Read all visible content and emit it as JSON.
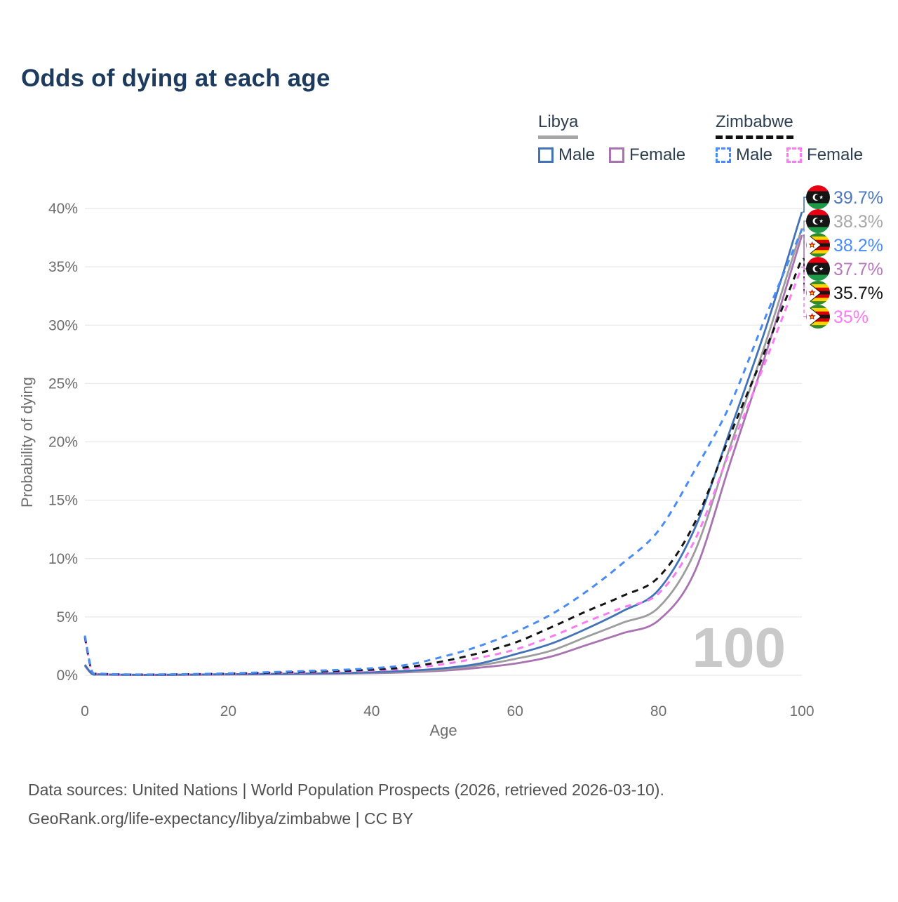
{
  "title": "Odds of dying at each age",
  "legend": {
    "groups": [
      {
        "name": "Libya",
        "line_style": "solid",
        "underline_color": "#a6a6a6",
        "items": [
          {
            "label": "Male",
            "color": "#4273b7",
            "dashed": false
          },
          {
            "label": "Female",
            "color": "#a873b0",
            "dashed": false
          }
        ]
      },
      {
        "name": "Zimbabwe",
        "line_style": "dashed",
        "underline_color": "#111111",
        "items": [
          {
            "label": "Male",
            "color": "#4a8cf7",
            "dashed": true
          },
          {
            "label": "Female",
            "color": "#fb7bf5",
            "dashed": true
          }
        ]
      }
    ]
  },
  "chart_data": {
    "type": "line",
    "title": "Odds of dying at each age",
    "xlabel": "Age",
    "ylabel": "Probability of dying",
    "xlim": [
      0,
      100
    ],
    "ylim": [
      0,
      40
    ],
    "x_ticks": [
      0,
      20,
      40,
      60,
      80,
      100
    ],
    "x_tick_labels": [
      "0",
      "20",
      "40",
      "60",
      "80",
      "100"
    ],
    "y_ticks": [
      0,
      5,
      10,
      15,
      20,
      25,
      30,
      35,
      40
    ],
    "y_tick_labels": [
      "0%",
      "5%",
      "10%",
      "15%",
      "20%",
      "25%",
      "30%",
      "35%",
      "40%"
    ],
    "grid": "horizontal",
    "legend_position": "top-right",
    "hover_age": "100",
    "x": [
      0,
      1,
      2,
      5,
      10,
      15,
      20,
      25,
      30,
      35,
      40,
      45,
      50,
      55,
      60,
      65,
      70,
      75,
      80,
      85,
      90,
      95,
      100
    ],
    "series": [
      {
        "name": "Libya Male",
        "country": "Libya",
        "sex": "Male",
        "color": "#4273b7",
        "label_color": "#4b77bc",
        "dashed": false,
        "z": 3,
        "end_value": 39.7,
        "end_label": "39.7%",
        "values": [
          0.9,
          0.12,
          0.08,
          0.05,
          0.04,
          0.06,
          0.09,
          0.11,
          0.14,
          0.18,
          0.26,
          0.38,
          0.6,
          1.0,
          1.8,
          2.7,
          4.0,
          5.5,
          7.3,
          12.5,
          21.0,
          29.8,
          39.7
        ]
      },
      {
        "name": "Libya",
        "country": "Libya",
        "sex": "Both",
        "color": "#9d9d9d",
        "label_color": "#a8a8a8",
        "dashed": false,
        "z": 2,
        "end_value": 38.3,
        "end_label": "38.3%",
        "values": [
          0.85,
          0.11,
          0.07,
          0.05,
          0.04,
          0.05,
          0.08,
          0.1,
          0.12,
          0.16,
          0.22,
          0.32,
          0.5,
          0.85,
          1.4,
          2.1,
          3.3,
          4.5,
          5.8,
          10.5,
          19.6,
          28.6,
          38.3
        ]
      },
      {
        "name": "Zimbabwe Male",
        "country": "Zimbabwe",
        "sex": "Male",
        "color": "#4a8cf7",
        "label_color": "#4a8cf7",
        "dashed": true,
        "z": 6,
        "end_value": 38.2,
        "end_label": "38.2%",
        "values": [
          3.4,
          0.3,
          0.15,
          0.08,
          0.07,
          0.1,
          0.16,
          0.25,
          0.35,
          0.45,
          0.6,
          0.9,
          1.6,
          2.5,
          3.7,
          5.2,
          7.2,
          9.6,
          12.4,
          17.5,
          23.2,
          30.8,
          38.2
        ]
      },
      {
        "name": "Libya Female",
        "country": "Libya",
        "sex": "Female",
        "color": "#a873b0",
        "label_color": "#b678bb",
        "dashed": false,
        "z": 1,
        "end_value": 37.7,
        "end_label": "37.7%",
        "values": [
          0.8,
          0.1,
          0.06,
          0.04,
          0.03,
          0.04,
          0.06,
          0.08,
          0.1,
          0.13,
          0.18,
          0.26,
          0.4,
          0.65,
          1.0,
          1.6,
          2.6,
          3.6,
          4.7,
          8.8,
          18.2,
          27.6,
          37.7
        ]
      },
      {
        "name": "Zimbabwe",
        "country": "Zimbabwe",
        "sex": "Both",
        "color": "#141414",
        "label_color": "#141414",
        "dashed": true,
        "z": 5,
        "end_value": 35.7,
        "end_label": "35.7%",
        "values": [
          3.3,
          0.28,
          0.14,
          0.07,
          0.06,
          0.09,
          0.14,
          0.21,
          0.28,
          0.36,
          0.48,
          0.7,
          1.2,
          1.9,
          2.8,
          4.1,
          5.5,
          6.8,
          8.4,
          13.0,
          20.6,
          28.0,
          35.7
        ]
      },
      {
        "name": "Zimbabwe Female",
        "country": "Zimbabwe",
        "sex": "Female",
        "color": "#fb7bf5",
        "label_color": "#fb7bf5",
        "dashed": true,
        "z": 4,
        "end_value": 35.0,
        "end_label": "35%",
        "values": [
          3.2,
          0.26,
          0.13,
          0.06,
          0.05,
          0.08,
          0.12,
          0.18,
          0.24,
          0.3,
          0.4,
          0.58,
          0.95,
          1.5,
          2.2,
          3.3,
          4.6,
          5.8,
          7.0,
          11.5,
          19.3,
          27.0,
          35.0
        ]
      }
    ]
  },
  "footer": {
    "line1": "Data sources: United Nations | World Population Prospects (2026, retrieved 2026-03-10).",
    "line2": "GeoRank.org/life-expectancy/libya/zimbabwe | CC BY"
  }
}
